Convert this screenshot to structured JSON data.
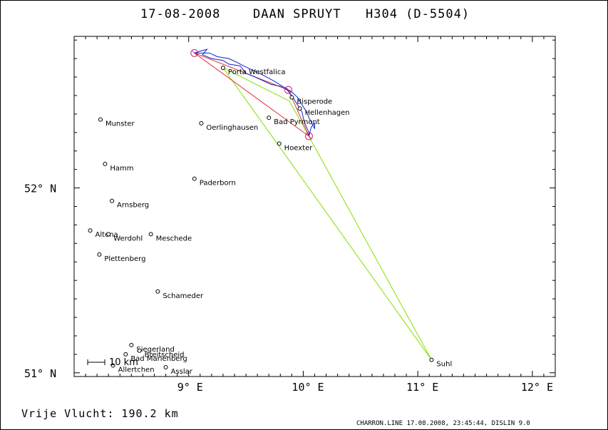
{
  "title": {
    "date": "17-08-2008",
    "pilot": "DAAN SPRUYT",
    "glider": "H304 (D-5504)"
  },
  "axes": {
    "x_ticks": [
      {
        "lon": 9,
        "label": "9° E"
      },
      {
        "lon": 10,
        "label": "10° E"
      },
      {
        "lon": 11,
        "label": "11° E"
      },
      {
        "lon": 12,
        "label": "12° E"
      }
    ],
    "y_ticks": [
      {
        "lat": 52,
        "label": "52° N"
      },
      {
        "lat": 51,
        "label": "51° N"
      }
    ],
    "lon_range": [
      8.0,
      12.2
    ],
    "lat_range": [
      50.98,
      52.82
    ]
  },
  "scale_bar": {
    "label": "10 km"
  },
  "towns": [
    {
      "name": "Porta Westfalica",
      "lon": 9.3,
      "lat": 52.65
    },
    {
      "name": "Bisperode",
      "lon": 9.9,
      "lat": 52.49
    },
    {
      "name": "Hellenhagen",
      "lon": 9.97,
      "lat": 52.43
    },
    {
      "name": "Bad Pyrmont",
      "lon": 9.7,
      "lat": 52.38
    },
    {
      "name": "Munster",
      "lon": 8.23,
      "lat": 52.37
    },
    {
      "name": "Oerlinghausen",
      "lon": 9.11,
      "lat": 52.35
    },
    {
      "name": "Hoexter",
      "lon": 9.79,
      "lat": 52.24
    },
    {
      "name": "Hamm",
      "lon": 8.27,
      "lat": 52.13
    },
    {
      "name": "Paderborn",
      "lon": 9.05,
      "lat": 52.05
    },
    {
      "name": "Arnsberg",
      "lon": 8.33,
      "lat": 51.93
    },
    {
      "name": "Altena",
      "lon": 8.14,
      "lat": 51.77
    },
    {
      "name": "Werdohl",
      "lon": 8.3,
      "lat": 51.75
    },
    {
      "name": "Meschede",
      "lon": 8.67,
      "lat": 51.75
    },
    {
      "name": "Plettenberg",
      "lon": 8.22,
      "lat": 51.64
    },
    {
      "name": "Schameder",
      "lon": 8.73,
      "lat": 51.44
    },
    {
      "name": "Siegerland",
      "lon": 8.5,
      "lat": 51.15
    },
    {
      "name": "Breitscheid",
      "lon": 8.57,
      "lat": 51.12
    },
    {
      "name": "Bad Marienberg",
      "lon": 8.45,
      "lat": 51.1
    },
    {
      "name": "Allertchen",
      "lon": 8.34,
      "lat": 51.04
    },
    {
      "name": "Asslar",
      "lon": 8.8,
      "lat": 51.03
    },
    {
      "name": "Suhl",
      "lon": 11.12,
      "lat": 51.07
    }
  ],
  "task_line": [
    {
      "lon": 9.3,
      "lat": 52.65
    },
    {
      "lon": 11.12,
      "lat": 51.07
    },
    {
      "lon": 9.88,
      "lat": 52.47
    },
    {
      "lon": 9.3,
      "lat": 52.65
    }
  ],
  "turnpoints": [
    {
      "lon": 9.05,
      "lat": 52.73
    },
    {
      "lon": 9.87,
      "lat": 52.53
    },
    {
      "lon": 10.05,
      "lat": 52.28
    }
  ],
  "legs": [
    {
      "lon": 9.05,
      "lat": 52.73
    },
    {
      "lon": 9.87,
      "lat": 52.53
    },
    {
      "lon": 10.05,
      "lat": 52.28
    },
    {
      "lon": 9.05,
      "lat": 52.73
    }
  ],
  "track": [
    [
      9.05,
      52.73
    ],
    [
      9.1,
      52.74
    ],
    [
      9.16,
      52.75
    ],
    [
      9.12,
      52.72
    ],
    [
      9.2,
      52.7
    ],
    [
      9.3,
      52.69
    ],
    [
      9.35,
      52.67
    ],
    [
      9.45,
      52.66
    ],
    [
      9.5,
      52.62
    ],
    [
      9.58,
      52.6
    ],
    [
      9.65,
      52.58
    ],
    [
      9.72,
      52.56
    ],
    [
      9.8,
      52.55
    ],
    [
      9.86,
      52.53
    ],
    [
      9.9,
      52.5
    ],
    [
      9.93,
      52.47
    ],
    [
      9.96,
      52.44
    ],
    [
      9.99,
      52.41
    ],
    [
      10.0,
      52.38
    ],
    [
      10.02,
      52.34
    ],
    [
      10.05,
      52.3
    ],
    [
      10.05,
      52.28
    ],
    [
      10.07,
      52.33
    ],
    [
      10.1,
      52.35
    ],
    [
      10.1,
      52.32
    ],
    [
      10.05,
      52.38
    ],
    [
      10.03,
      52.41
    ],
    [
      9.99,
      52.45
    ],
    [
      9.95,
      52.49
    ],
    [
      9.9,
      52.52
    ],
    [
      9.82,
      52.55
    ],
    [
      9.74,
      52.58
    ],
    [
      9.68,
      52.6
    ],
    [
      9.62,
      52.62
    ],
    [
      9.55,
      52.64
    ],
    [
      9.48,
      52.66
    ],
    [
      9.42,
      52.68
    ],
    [
      9.35,
      52.7
    ],
    [
      9.25,
      52.71
    ],
    [
      9.18,
      52.73
    ],
    [
      9.1,
      52.73
    ],
    [
      9.05,
      52.73
    ]
  ],
  "colors": {
    "task": "#84e000",
    "legs": "#e0303c",
    "track": "#0a22c8",
    "turnpoint": "#d02088",
    "frame": "#000000"
  },
  "footer": {
    "distance": "Vrije Vlucht:  190.2 km",
    "credit": "CHARRON.LINE 17.08.2008, 23:45:44, DISLIN 9.0"
  }
}
